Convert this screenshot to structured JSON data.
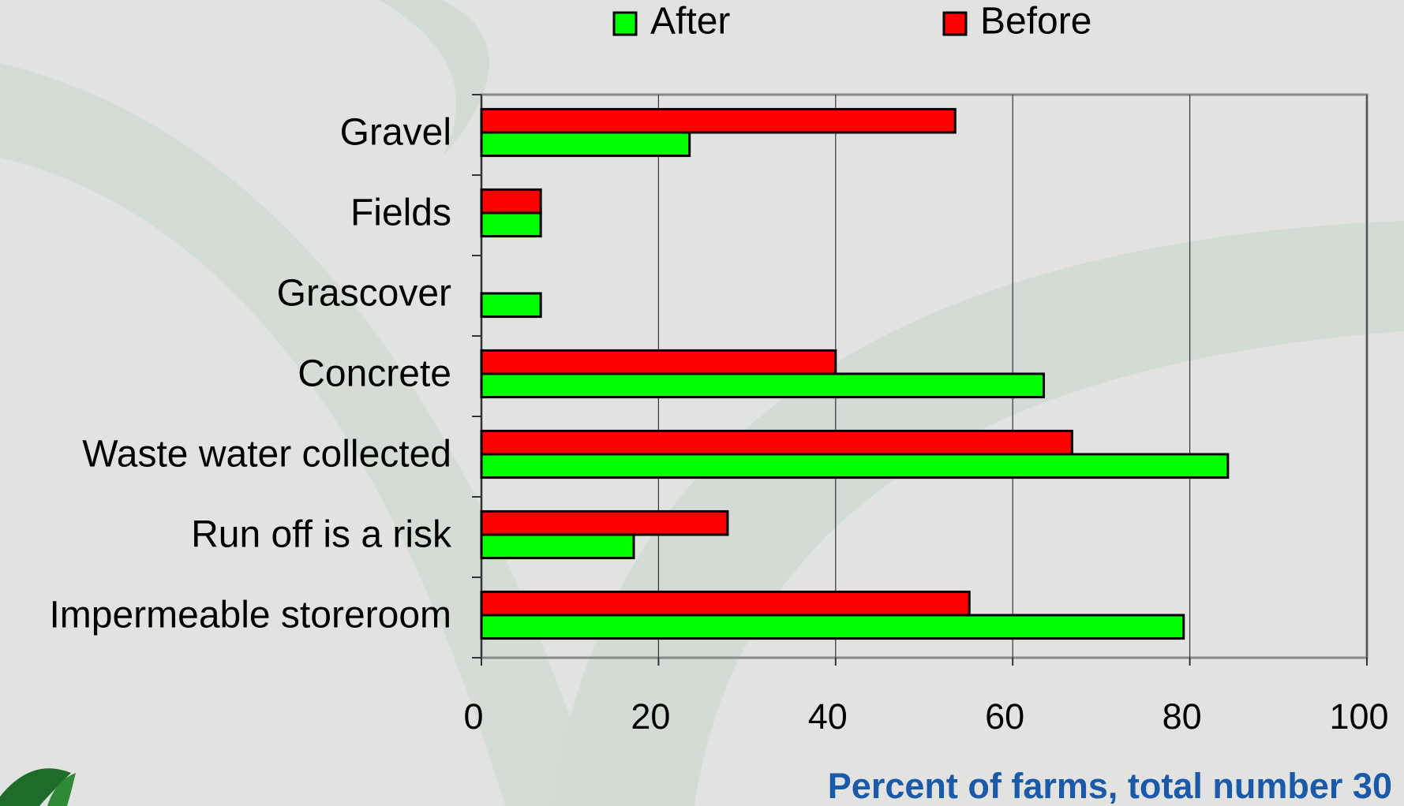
{
  "chart_data": {
    "type": "hbar",
    "categories": [
      "Gravel",
      "Fields",
      "Grascover",
      "Concrete",
      "Waste water collected",
      "Run off is a risk",
      "Impermeable storeroom"
    ],
    "series": [
      {
        "name": "After",
        "color": "#00ff00",
        "values": [
          23.5,
          6.7,
          6.7,
          63.5,
          84.3,
          17.2,
          79.3
        ]
      },
      {
        "name": "Before",
        "color": "#ff0000",
        "values": [
          53.5,
          6.7,
          0,
          40,
          66.7,
          27.8,
          55.1
        ]
      }
    ],
    "x_label": "Percent of farms, total number 30",
    "xlim": [
      0,
      100
    ],
    "xticks": [
      0,
      20,
      40,
      60,
      80,
      100
    ],
    "grid": true,
    "legend": "top"
  }
}
